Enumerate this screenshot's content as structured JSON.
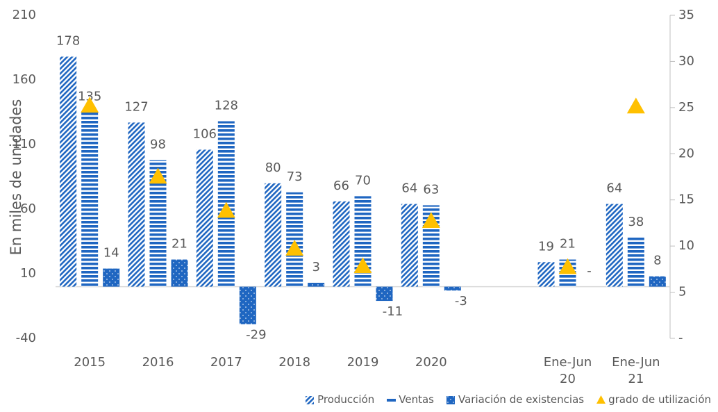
{
  "chart_data": {
    "type": "bar",
    "y_label": "En miles de unidades",
    "categories": [
      "2015",
      "2016",
      "2017",
      "2018",
      "2019",
      "2020",
      null,
      "Ene-Jun 20",
      "Ene-Jun 21"
    ],
    "series": [
      {
        "name": "Producción",
        "color": "#1f66c1",
        "pattern": "diagonal",
        "values": [
          178,
          127,
          106,
          80,
          66,
          64,
          null,
          19,
          64
        ]
      },
      {
        "name": "Ventas",
        "color": "#1f66c1",
        "pattern": "horizontal",
        "values": [
          135,
          98,
          128,
          73,
          70,
          63,
          null,
          21,
          38
        ]
      },
      {
        "name": "Variación de existencias",
        "color": "#1f66c1",
        "pattern": "dots",
        "values": [
          14,
          21,
          -29,
          3,
          -11,
          -3,
          null,
          0,
          8
        ],
        "value_labels": [
          "14",
          "21",
          "-29",
          "3",
          "-11",
          "-3",
          null,
          "-",
          "8"
        ]
      },
      {
        "name": "grado de utilización",
        "color": "#ffc000",
        "marker": "triangle",
        "axis": "y2",
        "values": [
          25.2,
          17.5,
          13.8,
          9.7,
          7.8,
          12.7,
          null,
          7.7,
          25.1
        ]
      }
    ],
    "ylim": [
      -40,
      210
    ],
    "yticks": [
      210,
      160,
      110,
      60,
      10,
      -40
    ],
    "y2lim": [
      0,
      35
    ],
    "y2ticks": [
      35,
      30,
      25,
      20,
      15,
      10,
      5,
      {
        "value": 0,
        "label": "-"
      }
    ]
  }
}
